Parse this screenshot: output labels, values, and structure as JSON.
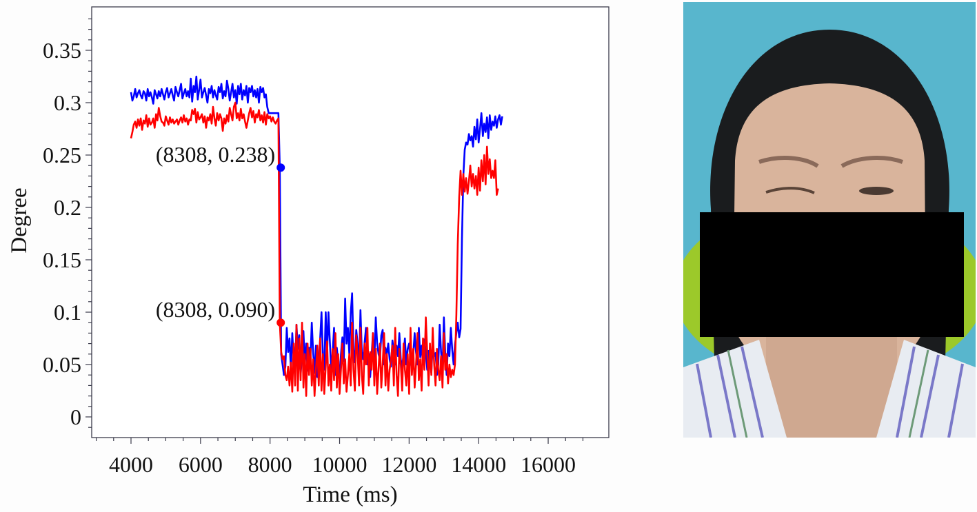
{
  "chart_data": {
    "type": "line",
    "title": "",
    "xlabel": "Time (ms)",
    "ylabel": "Degree",
    "xlim": [
      2900,
      17400
    ],
    "ylim": [
      -0.018,
      0.39
    ],
    "xticks": [
      4000,
      6000,
      8000,
      10000,
      12000,
      14000,
      16000
    ],
    "xtick_labels": [
      "4000",
      "6000",
      "8000",
      "10000",
      "12000",
      "14000",
      "16000"
    ],
    "yticks": [
      0,
      0.05,
      0.1,
      0.15,
      0.2,
      0.25,
      0.3,
      0.35
    ],
    "ytick_labels": [
      "0",
      "0.05",
      "0.1",
      "0.15",
      "0.2",
      "0.25",
      "0.3",
      "0.35"
    ],
    "grid": false,
    "legend": null,
    "x_start": 4000,
    "x_step": 40,
    "series": [
      {
        "name": "blue",
        "color": "#0000ff",
        "values": [
          0.31,
          0.302,
          0.306,
          0.313,
          0.305,
          0.309,
          0.312,
          0.307,
          0.304,
          0.311,
          0.309,
          0.302,
          0.313,
          0.306,
          0.31,
          0.305,
          0.299,
          0.312,
          0.308,
          0.304,
          0.311,
          0.306,
          0.313,
          0.308,
          0.303,
          0.31,
          0.314,
          0.305,
          0.309,
          0.313,
          0.307,
          0.302,
          0.315,
          0.31,
          0.306,
          0.312,
          0.318,
          0.304,
          0.309,
          0.313,
          0.306,
          0.311,
          0.305,
          0.323,
          0.301,
          0.316,
          0.31,
          0.325,
          0.303,
          0.312,
          0.322,
          0.305,
          0.31,
          0.314,
          0.307,
          0.3,
          0.313,
          0.309,
          0.316,
          0.305,
          0.312,
          0.307,
          0.303,
          0.315,
          0.31,
          0.318,
          0.304,
          0.311,
          0.306,
          0.321,
          0.313,
          0.302,
          0.31,
          0.318,
          0.305,
          0.312,
          0.299,
          0.316,
          0.308,
          0.318,
          0.303,
          0.312,
          0.307,
          0.316,
          0.3,
          0.314,
          0.31,
          0.316,
          0.306,
          0.312,
          0.305,
          0.313,
          0.3,
          0.315,
          0.31,
          0.314,
          0.305,
          0.308,
          0.296,
          0.29,
          0.29,
          0.29,
          0.29,
          0.29,
          0.29,
          0.29,
          0.29,
          0.238,
          0.06,
          0.05,
          0.04,
          0.048,
          0.085,
          0.062,
          0.075,
          0.045,
          0.08,
          0.055,
          0.048,
          0.088,
          0.065,
          0.078,
          0.04,
          0.06,
          0.082,
          0.05,
          0.07,
          0.044,
          0.066,
          0.055,
          0.09,
          0.061,
          0.042,
          0.068,
          0.038,
          0.052,
          0.074,
          0.1,
          0.058,
          0.045,
          0.1,
          0.06,
          0.1,
          0.072,
          0.045,
          0.061,
          0.085,
          0.04,
          0.066,
          0.052,
          0.039,
          0.06,
          0.076,
          0.053,
          0.113,
          0.07,
          0.085,
          0.06,
          0.099,
          0.118,
          0.064,
          0.052,
          0.083,
          0.07,
          0.048,
          0.102,
          0.062,
          0.055,
          0.071,
          0.085,
          0.05,
          0.06,
          0.038,
          0.058,
          0.08,
          0.052,
          0.095,
          0.07,
          0.06,
          0.055,
          0.078,
          0.083,
          0.05,
          0.066,
          0.06,
          0.07,
          0.055,
          0.048,
          0.073,
          0.062,
          0.05,
          0.068,
          0.058,
          0.08,
          0.055,
          0.047,
          0.06,
          0.075,
          0.05,
          0.065,
          0.07,
          0.055,
          0.048,
          0.06,
          0.08,
          0.062,
          0.05,
          0.085,
          0.057,
          0.068,
          0.05,
          0.074,
          0.062,
          0.045,
          0.063,
          0.055,
          0.042,
          0.07,
          0.058,
          0.061,
          0.04,
          0.05,
          0.088,
          0.062,
          0.047,
          0.095,
          0.06,
          0.04,
          0.07,
          0.058,
          0.085,
          0.064,
          0.05,
          0.069,
          0.08,
          0.09,
          0.076,
          0.084,
          0.17,
          0.23,
          0.255,
          0.262,
          0.26,
          0.27,
          0.264,
          0.268,
          0.258,
          0.277,
          0.265,
          0.284,
          0.262,
          0.275,
          0.29,
          0.268,
          0.28,
          0.272,
          0.286,
          0.266,
          0.288,
          0.274,
          0.282,
          0.278,
          0.287,
          0.276,
          0.284,
          0.288,
          0.279,
          0.287
        ]
      },
      {
        "name": "red",
        "color": "#ff0000",
        "values": [
          0.266,
          0.272,
          0.279,
          0.282,
          0.276,
          0.284,
          0.278,
          0.285,
          0.274,
          0.283,
          0.28,
          0.288,
          0.277,
          0.285,
          0.279,
          0.281,
          0.285,
          0.276,
          0.289,
          0.283,
          0.295,
          0.287,
          0.282,
          0.281,
          0.278,
          0.287,
          0.283,
          0.279,
          0.286,
          0.281,
          0.284,
          0.28,
          0.282,
          0.284,
          0.279,
          0.283,
          0.286,
          0.281,
          0.288,
          0.282,
          0.285,
          0.279,
          0.284,
          0.283,
          0.293,
          0.289,
          0.294,
          0.281,
          0.291,
          0.284,
          0.286,
          0.289,
          0.281,
          0.287,
          0.276,
          0.286,
          0.283,
          0.289,
          0.28,
          0.296,
          0.285,
          0.278,
          0.29,
          0.283,
          0.289,
          0.285,
          0.273,
          0.285,
          0.28,
          0.288,
          0.282,
          0.295,
          0.289,
          0.283,
          0.296,
          0.3,
          0.285,
          0.29,
          0.283,
          0.294,
          0.285,
          0.289,
          0.282,
          0.276,
          0.283,
          0.29,
          0.295,
          0.286,
          0.292,
          0.281,
          0.289,
          0.286,
          0.293,
          0.283,
          0.288,
          0.281,
          0.291,
          0.279,
          0.289,
          0.285,
          0.287,
          0.282,
          0.286,
          0.282,
          0.28,
          0.283,
          0.285,
          0.09,
          0.062,
          0.055,
          0.058,
          0.04,
          0.035,
          0.048,
          0.03,
          0.052,
          0.024,
          0.07,
          0.03,
          0.088,
          0.025,
          0.075,
          0.035,
          0.09,
          0.028,
          0.06,
          0.02,
          0.07,
          0.04,
          0.065,
          0.03,
          0.055,
          0.02,
          0.045,
          0.068,
          0.03,
          0.075,
          0.025,
          0.06,
          0.022,
          0.048,
          0.072,
          0.03,
          0.05,
          0.025,
          0.065,
          0.035,
          0.08,
          0.028,
          0.06,
          0.022,
          0.045,
          0.07,
          0.032,
          0.055,
          0.024,
          0.04,
          0.06,
          0.03,
          0.09,
          0.045,
          0.025,
          0.078,
          0.06,
          0.03,
          0.085,
          0.04,
          0.022,
          0.07,
          0.05,
          0.085,
          0.03,
          0.062,
          0.045,
          0.08,
          0.03,
          0.065,
          0.022,
          0.045,
          0.07,
          0.028,
          0.05,
          0.08,
          0.03,
          0.06,
          0.025,
          0.045,
          0.055,
          0.068,
          0.03,
          0.085,
          0.04,
          0.02,
          0.065,
          0.05,
          0.025,
          0.07,
          0.045,
          0.03,
          0.06,
          0.022,
          0.085,
          0.04,
          0.065,
          0.028,
          0.05,
          0.08,
          0.035,
          0.055,
          0.025,
          0.075,
          0.045,
          0.095,
          0.062,
          0.03,
          0.07,
          0.04,
          0.085,
          0.05,
          0.03,
          0.065,
          0.045,
          0.035,
          0.058,
          0.028,
          0.08,
          0.045,
          0.06,
          0.032,
          0.05,
          0.038,
          0.045,
          0.04,
          0.05,
          0.098,
          0.165,
          0.21,
          0.235,
          0.212,
          0.232,
          0.215,
          0.228,
          0.213,
          0.225,
          0.24,
          0.22,
          0.232,
          0.218,
          0.23,
          0.212,
          0.238,
          0.216,
          0.245,
          0.225,
          0.25,
          0.222,
          0.258,
          0.232,
          0.246,
          0.228,
          0.235,
          0.228,
          0.245,
          0.212,
          0.218
        ]
      }
    ],
    "annotations": [
      {
        "x": 8308,
        "y": 0.238,
        "label": "(8308, 0.238)",
        "color": "#0000ff"
      },
      {
        "x": 8308,
        "y": 0.09,
        "label": "(8308, 0.090)",
        "color": "#ff0000"
      }
    ]
  },
  "photo": {
    "description": "frontal face photograph with black redaction box over lower face",
    "background_color": "#5ab7ce",
    "redaction_color": "#000000"
  }
}
